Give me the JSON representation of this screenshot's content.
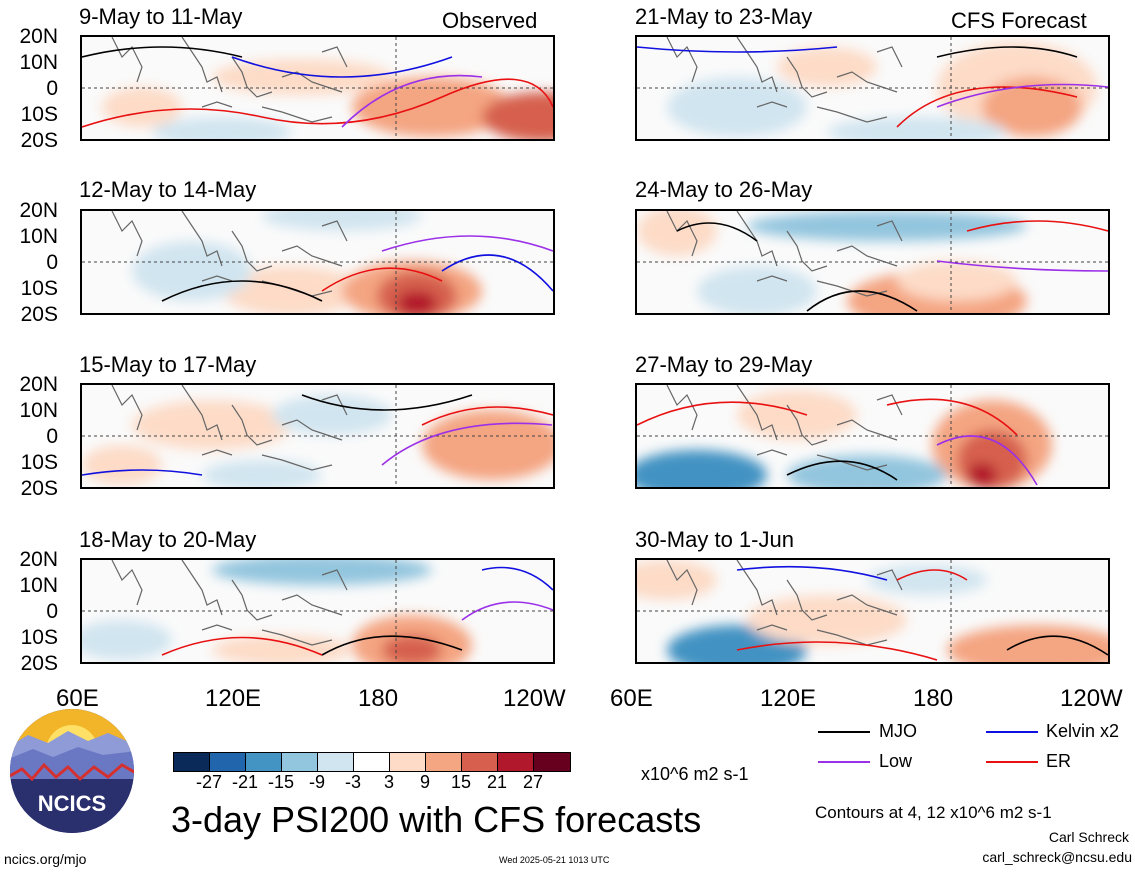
{
  "panels": [
    {
      "title": "9-May to 11-May",
      "note": "Observed"
    },
    {
      "title": "21-May to 23-May",
      "note": "CFS Forecast"
    },
    {
      "title": "12-May to 14-May",
      "note": ""
    },
    {
      "title": "24-May to 26-May",
      "note": ""
    },
    {
      "title": "15-May to 17-May",
      "note": ""
    },
    {
      "title": "27-May to 29-May",
      "note": ""
    },
    {
      "title": "18-May to 20-May",
      "note": ""
    },
    {
      "title": "30-May to 1-Jun",
      "note": ""
    }
  ],
  "lat_labels": [
    "20N",
    "10N",
    "0",
    "10S",
    "20S"
  ],
  "lon_labels": [
    "60E",
    "120E",
    "180",
    "120W"
  ],
  "colorbar": {
    "labels": [
      "-27",
      "-21",
      "-15",
      "-9",
      "-3",
      "3",
      "9",
      "15",
      "21",
      "27"
    ],
    "units": "x10^6 m2 s-1",
    "colors": [
      "#0a2a5a",
      "#2166ac",
      "#4393c3",
      "#92c5de",
      "#d1e5f0",
      "#ffffff",
      "#fddbc7",
      "#f4a582",
      "#d6604d",
      "#b2182b",
      "#67001f"
    ]
  },
  "legend": {
    "mjo": {
      "label": "MJO",
      "color": "#000000"
    },
    "kelvin": {
      "label": "Kelvin x2",
      "color": "#1010e0"
    },
    "low": {
      "label": "Low",
      "color": "#9b30e8"
    },
    "er": {
      "label": "ER",
      "color": "#e81010"
    }
  },
  "main_title": "3-day PSI200 with CFS forecasts",
  "contour_note": "Contours at 4, 12 x10^6 m2 s-1",
  "author": "Carl Schreck",
  "email": "carl_schreck@ncsu.edu",
  "site": "ncics.org/mjo",
  "timestamp": "Wed 2025-05-21 1013 UTC",
  "logo_text": "NCICS"
}
